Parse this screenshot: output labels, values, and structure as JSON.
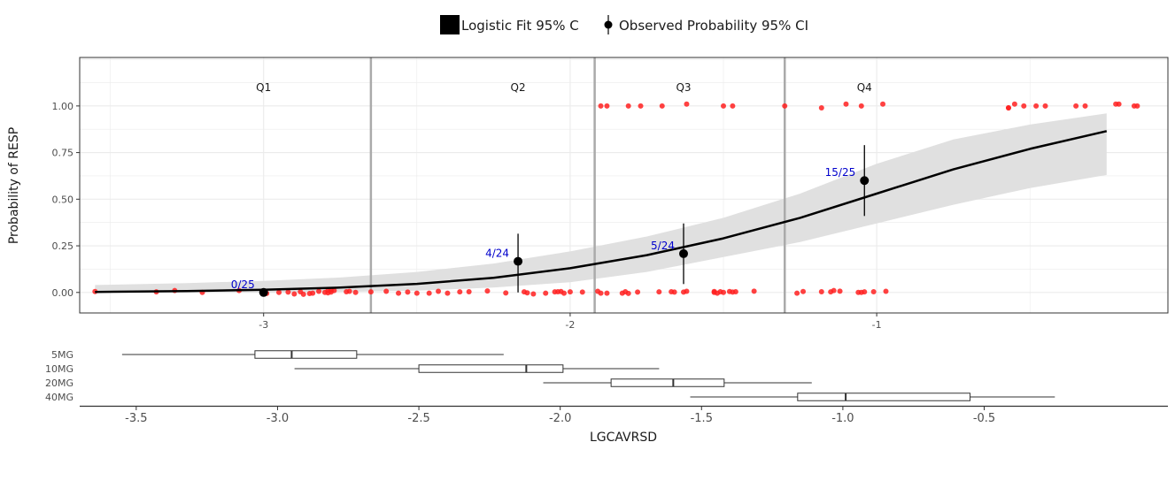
{
  "colors": {
    "band": "#e0e0e0",
    "fit": "#000000",
    "obs_points": "#ff2020",
    "count_labels": "#0000cc",
    "quartile_lines": "#aaaaaa",
    "panel_border": "#333333",
    "grid": "#ebebeb"
  },
  "legend": {
    "fit_label": "Logistic Fit 95% C",
    "obs_label": "Observed Probability 95% CI"
  },
  "chart_data": [
    {
      "type": "scatter",
      "description_role": "logistic exposure-response",
      "xlabel": "",
      "ylabel": "Probability of RESP",
      "xlim": [
        -3.6,
        -0.05
      ],
      "ylim": [
        -0.11,
        1.26
      ],
      "x_ticks": [
        -3,
        -2,
        -1
      ],
      "x_tick_labels": [
        "-3",
        "-2",
        "-1"
      ],
      "y_ticks": [
        0,
        0.25,
        0.5,
        0.75,
        1.0
      ],
      "y_tick_labels": [
        "0.00",
        "0.25",
        "0.50",
        "0.75",
        "1.00"
      ],
      "grid": true,
      "quartile_cutoffs": [
        -2.65,
        -1.92,
        -1.3
      ],
      "quartile_labels": [
        {
          "label": "Q1",
          "x": -3.0
        },
        {
          "label": "Q2",
          "x": -2.17
        },
        {
          "label": "Q3",
          "x": -1.63
        },
        {
          "label": "Q4",
          "x": -1.04
        }
      ],
      "fit_curve": {
        "x": [
          -3.55,
          -3.25,
          -3.0,
          -2.75,
          -2.5,
          -2.25,
          -2.0,
          -1.75,
          -1.5,
          -1.25,
          -1.0,
          -0.75,
          -0.5,
          -0.25
        ],
        "y": [
          0.003,
          0.007,
          0.014,
          0.026,
          0.046,
          0.078,
          0.13,
          0.2,
          0.29,
          0.4,
          0.53,
          0.66,
          0.77,
          0.865
        ]
      },
      "fit_band": {
        "x": [
          -3.55,
          -3.25,
          -3.0,
          -2.75,
          -2.5,
          -2.25,
          -2.0,
          -1.75,
          -1.5,
          -1.25,
          -1.0,
          -0.75,
          -0.5,
          -0.25
        ],
        "lower": [
          0.0,
          0.0,
          0.0,
          0.003,
          0.01,
          0.026,
          0.055,
          0.11,
          0.19,
          0.27,
          0.37,
          0.47,
          0.56,
          0.63
        ],
        "upper": [
          0.04,
          0.05,
          0.062,
          0.08,
          0.11,
          0.155,
          0.22,
          0.3,
          0.4,
          0.53,
          0.69,
          0.82,
          0.9,
          0.96
        ]
      },
      "observed_quartiles": [
        {
          "x": -3.0,
          "y": 0.0,
          "lower": 0.0,
          "upper": 0.0,
          "label": "0/25"
        },
        {
          "x": -2.17,
          "y": 0.167,
          "lower": 0.0,
          "upper": 0.315,
          "label": "4/24"
        },
        {
          "x": -1.63,
          "y": 0.208,
          "lower": 0.045,
          "upper": 0.37,
          "label": "5/24"
        },
        {
          "x": -1.04,
          "y": 0.6,
          "lower": 0.41,
          "upper": 0.79,
          "label": "15/25"
        }
      ],
      "raw_points": {
        "x": [
          -3.55,
          -3.35,
          -3.29,
          -3.2,
          -3.08,
          -2.99,
          -2.95,
          -2.92,
          -2.9,
          -2.88,
          -2.87,
          -2.85,
          -2.84,
          -2.82,
          -2.8,
          -2.79,
          -2.79,
          -2.78,
          -2.78,
          -2.77,
          -2.73,
          -2.72,
          -2.7,
          -2.65,
          -2.6,
          -2.56,
          -2.53,
          -2.5,
          -2.46,
          -2.43,
          -2.4,
          -2.36,
          -2.33,
          -2.27,
          -2.21,
          -2.15,
          -2.14,
          -2.12,
          -2.08,
          -2.05,
          -2.04,
          -2.03,
          -2.02,
          -2.0,
          -1.96,
          -1.91,
          -1.9,
          -1.88,
          -1.83,
          -1.82,
          -1.81,
          -1.78,
          -1.71,
          -1.67,
          -1.66,
          -1.63,
          -1.62,
          -1.53,
          -1.53,
          -1.52,
          -1.51,
          -1.5,
          -1.48,
          -1.47,
          -1.46,
          -1.4,
          -1.26,
          -1.24,
          -1.18,
          -1.15,
          -1.14,
          -1.12,
          -1.06,
          -1.05,
          -1.04,
          -1.01,
          -0.97,
          -0.57,
          -0.57,
          -0.55,
          -0.52,
          -0.48,
          -0.45,
          -0.35,
          -0.32,
          -0.22,
          -0.21,
          -0.16,
          -0.15,
          -1.9,
          -1.88,
          -1.81,
          -1.77,
          -1.7,
          -1.62,
          -1.5,
          -1.47,
          -1.3,
          -1.18,
          -1.1,
          -1.05,
          -0.98
        ],
        "y": [
          0.005,
          0.003,
          0.01,
          0.0,
          0.01,
          -0.005,
          0.0,
          0.002,
          -0.008,
          0.004,
          -0.01,
          -0.006,
          -0.004,
          0.006,
          0.0,
          0.01,
          -0.002,
          0.012,
          0.002,
          0.01,
          0.004,
          0.006,
          0.0,
          0.003,
          0.006,
          -0.004,
          0.002,
          -0.004,
          -0.004,
          0.006,
          -0.004,
          0.003,
          0.004,
          0.008,
          -0.003,
          0.003,
          -0.002,
          -0.008,
          -0.004,
          0.003,
          0.004,
          0.005,
          -0.004,
          0.003,
          0.002,
          0.006,
          -0.004,
          -0.004,
          -0.004,
          0.004,
          -0.005,
          0.002,
          0.003,
          0.004,
          0.002,
          0.002,
          0.006,
          0.0,
          0.005,
          -0.004,
          0.004,
          0.0,
          0.005,
          0.002,
          0.004,
          0.007,
          -0.004,
          0.005,
          0.004,
          0.003,
          0.01,
          0.007,
          0.0,
          0.0,
          0.003,
          0.004,
          0.006,
          0.99,
          0.99,
          1.01,
          1.0,
          1.0,
          1.0,
          1.0,
          1.0,
          1.01,
          1.01,
          1.0,
          1.0,
          1.0,
          1.0,
          1.0,
          1.0,
          1.0,
          1.01,
          1.0,
          1.0,
          1.0,
          0.99,
          1.01,
          1.0,
          1.01
        ],
        "x2": [
          -0.55,
          -0.48,
          -0.32,
          -0.15,
          -0.06,
          0.02,
          0.11,
          -0.84,
          -0.71,
          -0.55,
          -0.44,
          -0.38,
          -0.3,
          -0.26
        ]
      }
    },
    {
      "type": "boxplot",
      "description_role": "dose group exposure distribution",
      "xlabel": "LGCAVRSD",
      "xlim": [
        -3.7,
        0.15
      ],
      "x_ticks": [
        -3.5,
        -3.0,
        -2.5,
        -2.0,
        -1.5,
        -1.0,
        -0.5
      ],
      "x_tick_labels": [
        "-3.5",
        "-3.0",
        "-2.5",
        "-2.0",
        "-1.5",
        "-1.0",
        "-0.5"
      ],
      "groups": [
        {
          "label": "5MG",
          "min": -3.55,
          "q1": -3.08,
          "median": -2.95,
          "q3": -2.72,
          "max": -2.2
        },
        {
          "label": "10MG",
          "min": -2.94,
          "q1": -2.5,
          "median": -2.12,
          "q3": -1.99,
          "max": -1.65
        },
        {
          "label": "20MG",
          "min": -2.06,
          "q1": -1.82,
          "median": -1.6,
          "q3": -1.42,
          "max": -1.11
        },
        {
          "label": "40MG",
          "min": -1.54,
          "q1": -1.16,
          "median": -0.99,
          "q3": -0.55,
          "max": -0.25
        }
      ]
    }
  ]
}
